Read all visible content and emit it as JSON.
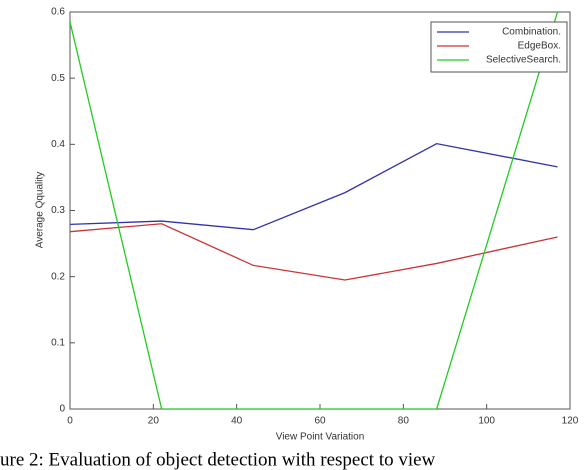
{
  "chart_data": {
    "type": "line",
    "xlabel": "View Point Variation",
    "ylabel": "Average Qquality",
    "caption": "ure 2: Evaluation of object detection with respect to view",
    "x": [
      0,
      22,
      44,
      66,
      88,
      117
    ],
    "series": [
      {
        "name": "Combination.",
        "color": "#3333aa",
        "values": [
          0.279,
          0.284,
          0.271,
          0.327,
          0.401,
          0.366
        ]
      },
      {
        "name": "EdgeBox.",
        "color": "#cc3333",
        "values": [
          0.268,
          0.28,
          0.217,
          0.195,
          0.22,
          0.26
        ]
      },
      {
        "name": "SelectiveSearch.",
        "color": "#22cc22",
        "values": [
          0.585,
          0,
          0,
          0,
          0,
          0.6
        ]
      }
    ],
    "xlim": [
      0,
      120
    ],
    "xticks": [
      0,
      20,
      40,
      60,
      80,
      100,
      120
    ],
    "ylim": [
      0,
      0.6
    ],
    "yticks": [
      0,
      0.1,
      0.2,
      0.3,
      0.4,
      0.5,
      0.6
    ],
    "legend": "upper right"
  }
}
